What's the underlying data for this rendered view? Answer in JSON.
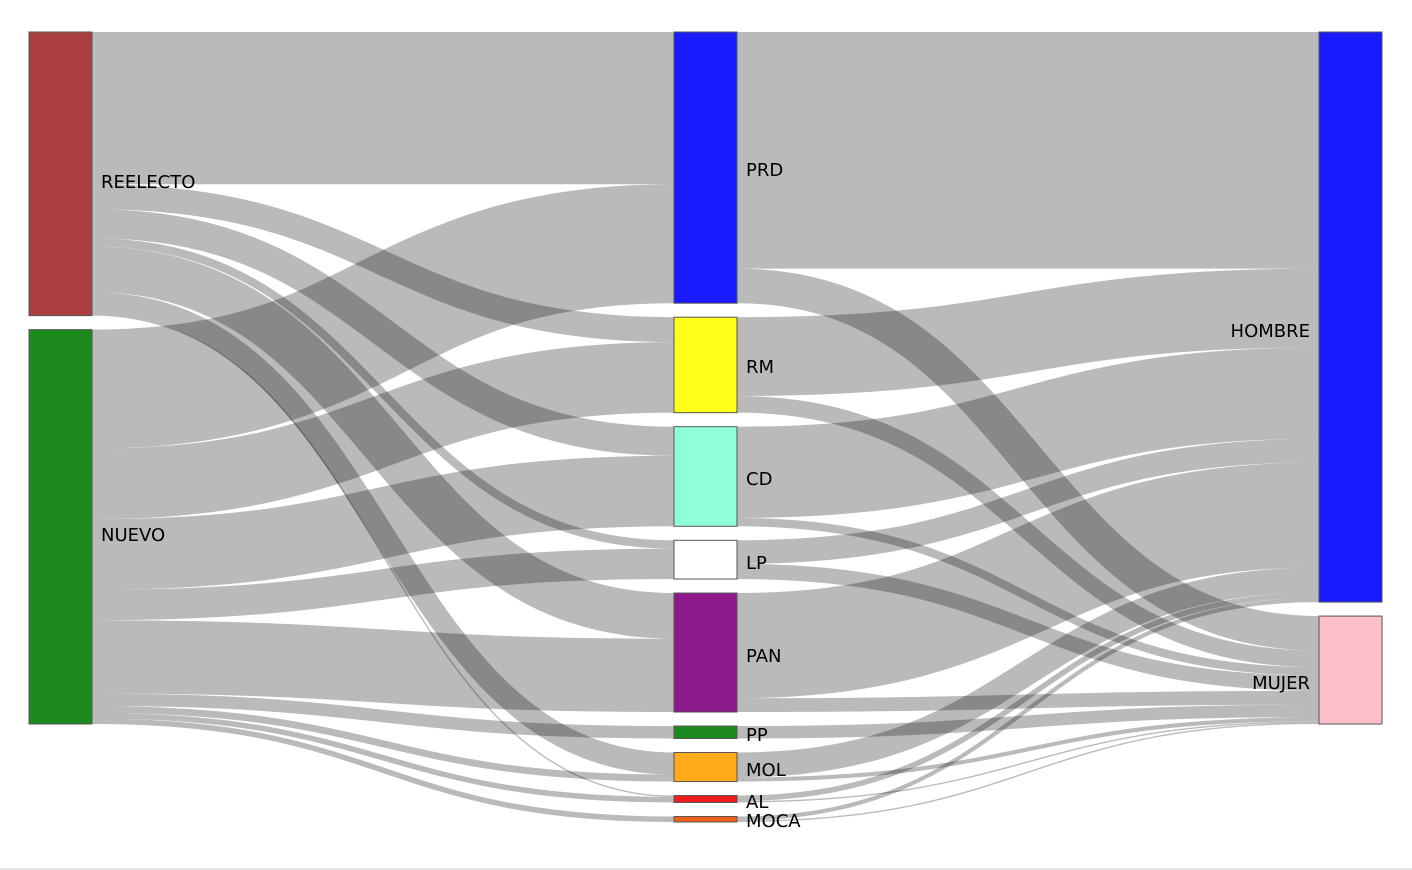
{
  "diagram": {
    "type": "sankey",
    "link_color": "#a3a3a3",
    "nodes": [
      {
        "id": "REELECTO",
        "label": "REELECTO",
        "color": "#ab3f3f"
      },
      {
        "id": "NUEVO",
        "label": "NUEVO",
        "color": "#1c8a1c"
      },
      {
        "id": "PRD",
        "label": "PRD",
        "color": "#1a1aff"
      },
      {
        "id": "RM",
        "label": "RM",
        "color": "#ffff1a"
      },
      {
        "id": "CD",
        "label": "CD",
        "color": "#8effd6"
      },
      {
        "id": "LP",
        "label": "LP",
        "color": "#ffffff"
      },
      {
        "id": "PAN",
        "label": "PAN",
        "color": "#8c1a8c"
      },
      {
        "id": "PP",
        "label": "PP",
        "color": "#1c8a1c"
      },
      {
        "id": "MOL",
        "label": "MOL",
        "color": "#ffab1a"
      },
      {
        "id": "AL",
        "label": "AL",
        "color": "#ee1c1c"
      },
      {
        "id": "MOCA",
        "label": "MOCA",
        "color": "#f0601a"
      },
      {
        "id": "HOMBRE",
        "label": "HOMBRE",
        "color": "#1a1aff"
      },
      {
        "id": "MUJER",
        "label": "MUJER",
        "color": "#ffc0cb"
      }
    ],
    "links": [
      {
        "source": "REELECTO",
        "target": "PRD",
        "value": 11
      },
      {
        "source": "REELECTO",
        "target": "RM",
        "value": 1.8
      },
      {
        "source": "REELECTO",
        "target": "CD",
        "value": 2.1
      },
      {
        "source": "REELECTO",
        "target": "LP",
        "value": 0.6
      },
      {
        "source": "REELECTO",
        "target": "PAN",
        "value": 3.3
      },
      {
        "source": "REELECTO",
        "target": "MOL",
        "value": 1.6
      },
      {
        "source": "REELECTO",
        "target": "AL",
        "value": 0.1
      },
      {
        "source": "NUEVO",
        "target": "PRD",
        "value": 8.6
      },
      {
        "source": "NUEVO",
        "target": "RM",
        "value": 5.1
      },
      {
        "source": "NUEVO",
        "target": "CD",
        "value": 5.1
      },
      {
        "source": "NUEVO",
        "target": "LP",
        "value": 2.2
      },
      {
        "source": "NUEVO",
        "target": "PAN",
        "value": 5.3
      },
      {
        "source": "NUEVO",
        "target": "PP",
        "value": 0.9
      },
      {
        "source": "NUEVO",
        "target": "MOL",
        "value": 0.5
      },
      {
        "source": "NUEVO",
        "target": "AL",
        "value": 0.4
      },
      {
        "source": "NUEVO",
        "target": "MOCA",
        "value": 0.4
      },
      {
        "source": "PRD",
        "target": "HOMBRE",
        "value": 17.1
      },
      {
        "source": "PRD",
        "target": "MUJER",
        "value": 2.5
      },
      {
        "source": "RM",
        "target": "HOMBRE",
        "value": 5.7
      },
      {
        "source": "RM",
        "target": "MUJER",
        "value": 1.2
      },
      {
        "source": "CD",
        "target": "HOMBRE",
        "value": 6.6
      },
      {
        "source": "CD",
        "target": "MUJER",
        "value": 0.6
      },
      {
        "source": "LP",
        "target": "HOMBRE",
        "value": 1.7
      },
      {
        "source": "LP",
        "target": "MUJER",
        "value": 1.1
      },
      {
        "source": "PAN",
        "target": "HOMBRE",
        "value": 7.6
      },
      {
        "source": "PAN",
        "target": "MUJER",
        "value": 1.0
      },
      {
        "source": "PP",
        "target": "MUJER",
        "value": 0.9
      },
      {
        "source": "MOL",
        "target": "HOMBRE",
        "value": 1.8
      },
      {
        "source": "MOL",
        "target": "MUJER",
        "value": 0.3
      },
      {
        "source": "AL",
        "target": "HOMBRE",
        "value": 0.4
      },
      {
        "source": "AL",
        "target": "MUJER",
        "value": 0.1
      },
      {
        "source": "MOCA",
        "target": "HOMBRE",
        "value": 0.3
      },
      {
        "source": "MOCA",
        "target": "MUJER",
        "value": 0.1
      }
    ]
  }
}
